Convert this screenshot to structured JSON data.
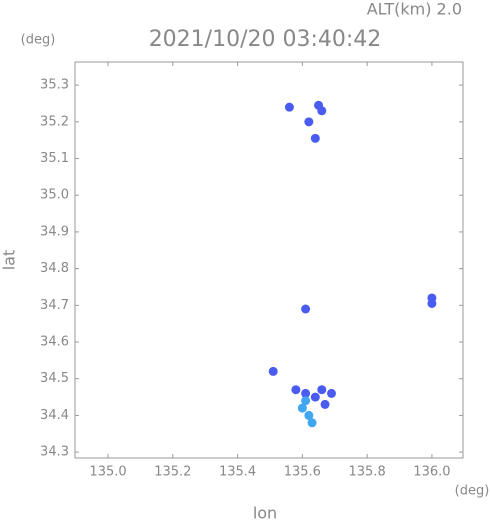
{
  "chart_data": {
    "type": "scatter",
    "title": "2021/10/20 03:40:42",
    "subtitle": "ALT(km) 2.0",
    "y_unit": "(deg)",
    "x_unit": "(deg)",
    "x_label": "lon",
    "y_label": "lat",
    "xlim": [
      134.898,
      136.096
    ],
    "ylim": [
      34.284,
      35.363
    ],
    "xticks": [
      {
        "value": 135,
        "label": "135.0"
      },
      135.2,
      135.4,
      135.6,
      135.8,
      {
        "value": 136,
        "label": "136.0"
      }
    ],
    "yticks": [
      34.3,
      34.4,
      34.5,
      34.6,
      34.7,
      34.8,
      34.9,
      {
        "value": 35,
        "label": "35.0"
      },
      35.1,
      35.2,
      35.3
    ],
    "series": [
      {
        "color": "#4a5cf0",
        "x": [
          135.65,
          135.66,
          135.56,
          135.62,
          135.64,
          135.61,
          136.0,
          136.0,
          135.51,
          135.58,
          135.61,
          135.66,
          135.69,
          135.64,
          135.67
        ],
        "values": [
          35.245,
          35.23,
          35.24,
          35.2,
          35.155,
          34.69,
          34.72,
          34.705,
          34.52,
          34.47,
          34.46,
          34.47,
          34.46,
          34.45,
          34.43
        ]
      },
      {
        "color": "#3fa6f2",
        "x": [
          135.6,
          135.62,
          135.63,
          135.61
        ],
        "values": [
          34.42,
          34.4,
          34.38,
          34.44
        ]
      }
    ]
  }
}
